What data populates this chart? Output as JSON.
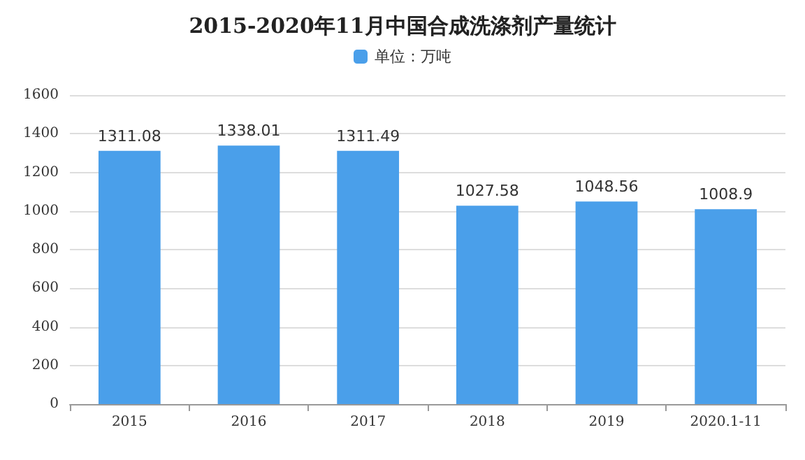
{
  "chart_data": {
    "type": "bar",
    "title": "2015-2020年11月中国合成洗涤剂产量统计",
    "categories": [
      "2015",
      "2016",
      "2017",
      "2018",
      "2019",
      "2020.1-11"
    ],
    "series": [
      {
        "name": "单位：万吨",
        "color": "#4a9fea",
        "values": [
          1311.08,
          1338.01,
          1311.49,
          1027.58,
          1048.56,
          1008.9
        ]
      }
    ],
    "ylim": [
      0,
      1600
    ],
    "yticks": [
      0,
      200,
      400,
      600,
      800,
      1000,
      1200,
      1400,
      1600
    ],
    "grid": "y",
    "legend": "top",
    "data_labels": true
  }
}
